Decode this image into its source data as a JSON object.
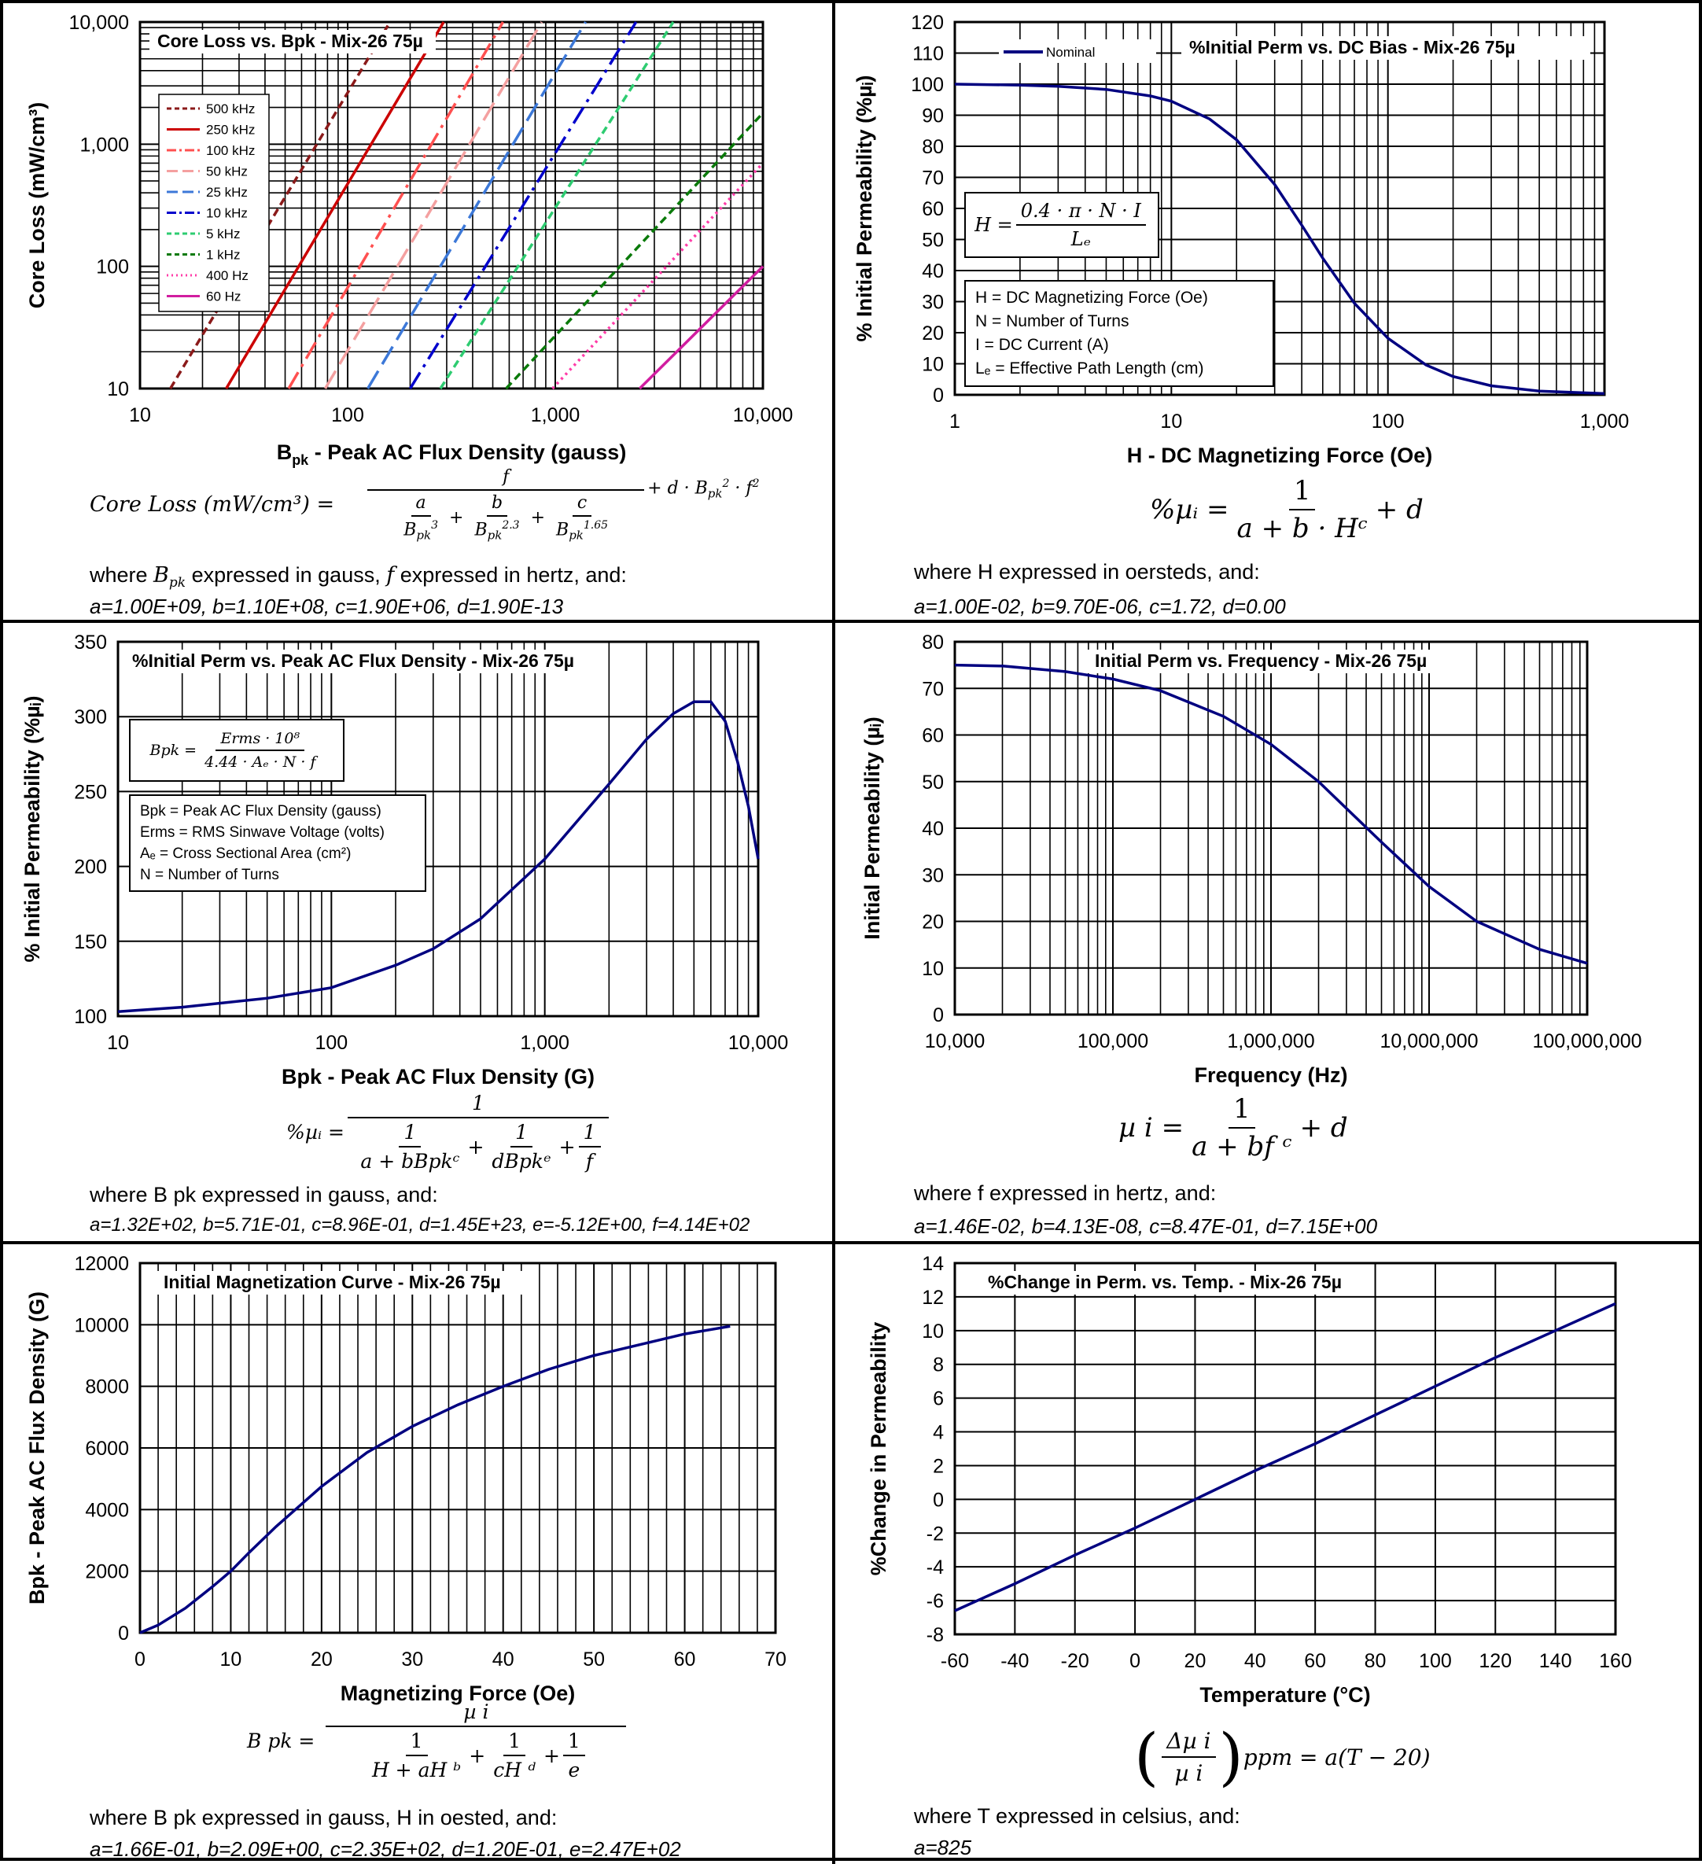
{
  "panels": {
    "core_loss": {
      "title": "Core Loss vs. Bpk - Mix-26  75µ",
      "ylabel": "Core Loss (mW/cm³)",
      "xlabel_main": "B",
      "xlabel_sub": "pk",
      "xlabel_rest": " - Peak AC Flux Density (gauss)",
      "yticks": [
        "10",
        "100",
        "1,000",
        "10,000"
      ],
      "xticks": [
        "10",
        "100",
        "1,000",
        "10,000"
      ],
      "eq_lhs": "Core Loss (mW/cm³)  =",
      "eq_f": "f",
      "eq_a": "a",
      "eq_b": "b",
      "eq_c": "c",
      "eq_Bpk": "B",
      "eq_pk": "pk",
      "eq_exp3": "3",
      "eq_exp23": "2.3",
      "eq_exp165": "1.65",
      "eq_tail": "+ d · B",
      "eq_tail_pk": "pk",
      "eq_tail_exp": "2",
      "eq_tail_f": "· f",
      "eq_tail_fexp": "2",
      "where_a": "where ",
      "where_B": "B",
      "where_pk": "pk",
      "where_b": " expressed in gauss, ",
      "where_f": "f",
      "where_c": " expressed in hertz, and:",
      "coeffs": "a=1.00E+09,   b=1.10E+08,   c=1.90E+06,   d=1.90E-13"
    },
    "dc_bias": {
      "title": "%Initial Perm vs. DC Bias - Mix-26  75µ",
      "legend": "Nominal",
      "ylabel": "% Initial Permeability (%µᵢ)",
      "xlabel": "H - DC Magnetizing Force (Oe)",
      "yticks": [
        "0",
        "10",
        "20",
        "30",
        "40",
        "50",
        "60",
        "70",
        "80",
        "90",
        "100",
        "110",
        "120"
      ],
      "xticks": [
        "1",
        "10",
        "100",
        "1,000"
      ],
      "box_eq_lhs": "H =",
      "box_eq_num": "0.4 · π · N · I",
      "box_eq_den": "Lₑ",
      "box_lines": [
        "H = DC Magnetizing Force (Oe)",
        "N = Number of Turns",
        "I = DC Current (A)",
        "Lₑ = Effective Path Length (cm)"
      ],
      "eq_lhs": "%µᵢ =",
      "eq_num": "1",
      "eq_den": "a + b · Hᶜ",
      "eq_tail": "+ d",
      "where": "where H  expressed in oersteds, and:",
      "coeffs": "a=1.00E-02,  b=9.70E-06,  c=1.72,  d=0.00"
    },
    "ac_flux": {
      "title": "%Initial Perm vs. Peak AC Flux Density - Mix-26  75µ",
      "ylabel": "% Initial Permeability (%µᵢ)",
      "xlabel": "Bpk - Peak AC Flux Density (G)",
      "yticks": [
        "100",
        "150",
        "200",
        "250",
        "300",
        "350"
      ],
      "xticks": [
        "10",
        "100",
        "1,000",
        "10,000"
      ],
      "box_eq_lhs": "Bpk =",
      "box_eq_num": "Erms · 10⁸",
      "box_eq_den": "4.44 · Aₑ · N · f",
      "box_lines": [
        "Bpk = Peak AC Flux Density (gauss)",
        "Erms = RMS Sinwave Voltage (volts)",
        "Aₑ = Cross Sectional Area (cm²)",
        "N = Number of Turns"
      ],
      "eq_lhs": "%µᵢ =",
      "eq_num": "1",
      "eq_t1": "1",
      "eq_d1": "a + bBpkᶜ",
      "eq_t2": "1",
      "eq_d2": "dBpkᵉ",
      "eq_t3": "1",
      "eq_d3": "f",
      "where": "where B pk  expressed in gauss, and:",
      "coeffs": "a=1.32E+02, b=5.71E-01, c=8.96E-01, d=1.45E+23, e=-5.12E+00, f=4.14E+02"
    },
    "frequency": {
      "title": "Initial Perm vs. Frequency - Mix-26  75µ",
      "ylabel": "Initial Permeability (µᵢ)",
      "xlabel": "Frequency (Hz)",
      "yticks": [
        "0",
        "10",
        "20",
        "30",
        "40",
        "50",
        "60",
        "70",
        "80"
      ],
      "xticks": [
        "10,000",
        "100,000",
        "1,000,000",
        "10,000,000",
        "100,000,000"
      ],
      "eq_lhs": "µ i  =",
      "eq_num": "1",
      "eq_den": "a  +  bf ᶜ",
      "eq_tail": "+  d",
      "where": "where f  expressed in hertz, and:",
      "coeffs": "a=1.46E-02,   b=4.13E-08,   c=8.47E-01,   d=7.15E+00"
    },
    "magnetization": {
      "title": "Initial Magnetization Curve - Mix-26  75µ",
      "ylabel": "Bpk - Peak AC Flux Density (G)",
      "xlabel": "Magnetizing Force (Oe)",
      "yticks": [
        "0",
        "2000",
        "4000",
        "6000",
        "8000",
        "10000",
        "12000"
      ],
      "xticks": [
        "0",
        "10",
        "20",
        "30",
        "40",
        "50",
        "60",
        "70"
      ],
      "eq_lhs": "B pk   =",
      "eq_num": "µ i",
      "eq_t1": "1",
      "eq_d1": "H  +  aH ᵇ",
      "eq_t2": "1",
      "eq_d2": "cH ᵈ",
      "eq_t3": "1",
      "eq_d3": "e",
      "where": "where B pk  expressed in gauss, H  in oested, and:",
      "coeffs": "a=1.66E-01,  b=2.09E+00,  c=2.35E+02,  d=1.20E-01,  e=2.47E+02"
    },
    "temperature": {
      "title": "%Change in Perm. vs. Temp. - Mix-26  75µ",
      "ylabel": "%Change in Permeability",
      "xlabel": "Temperature (°C)",
      "yticks": [
        "-8",
        "-6",
        "-4",
        "-2",
        "0",
        "2",
        "4",
        "6",
        "8",
        "10",
        "12",
        "14"
      ],
      "xticks": [
        "-60",
        "-40",
        "-20",
        "0",
        "20",
        "40",
        "60",
        "80",
        "100",
        "120",
        "140",
        "160"
      ],
      "eq_num": "Δµ i",
      "eq_den": "µ i",
      "eq_tail": "ppm = a(T − 20)",
      "where": "where T  expressed in celsius, and:",
      "coeffs": "a=825"
    }
  },
  "chart_data": [
    {
      "type": "line",
      "title": "Core Loss vs. Bpk - Mix-26  75µ",
      "xlabel": "Bpk - Peak AC Flux Density (gauss)",
      "ylabel": "Core Loss (mW/cm³)",
      "xscale": "log",
      "yscale": "log",
      "xlim": [
        10,
        10000
      ],
      "ylim": [
        10,
        10000
      ],
      "grid": true,
      "legend_position": "left",
      "series": [
        {
          "name": "500 kHz",
          "color": "#8b1a1a",
          "dash": "dash",
          "points": [
            [
              14,
              10
            ],
            [
              160,
              10000
            ]
          ]
        },
        {
          "name": "250 kHz",
          "color": "#cc0000",
          "dash": "solid",
          "points": [
            [
              26,
              10
            ],
            [
              290,
              10000
            ]
          ]
        },
        {
          "name": "100 kHz",
          "color": "#ff5050",
          "dash": "dashdot",
          "points": [
            [
              52,
              10
            ],
            [
              560,
              10000
            ]
          ]
        },
        {
          "name": "50 kHz",
          "color": "#f4a0a0",
          "dash": "longdash",
          "points": [
            [
              78,
              10
            ],
            [
              860,
              10000
            ]
          ]
        },
        {
          "name": "25 kHz",
          "color": "#3c78d8",
          "dash": "longdash",
          "points": [
            [
              125,
              10
            ],
            [
              1400,
              10000
            ]
          ]
        },
        {
          "name": "10 kHz",
          "color": "#0000cc",
          "dash": "dashdot",
          "points": [
            [
              200,
              10
            ],
            [
              2450,
              10000
            ]
          ]
        },
        {
          "name": "5 kHz",
          "color": "#2ecc71",
          "dash": "dash",
          "points": [
            [
              280,
              10
            ],
            [
              3700,
              10000
            ]
          ]
        },
        {
          "name": "1 kHz",
          "color": "#0a7a0a",
          "dash": "dash",
          "points": [
            [
              580,
              10
            ],
            [
              10000,
              1800
            ]
          ]
        },
        {
          "name": "400 Hz",
          "color": "#ff3ca8",
          "dash": "dot",
          "points": [
            [
              970,
              10
            ],
            [
              10000,
              700
            ]
          ]
        },
        {
          "name": "60 Hz",
          "color": "#d11da0",
          "dash": "solid",
          "points": [
            [
              2550,
              10
            ],
            [
              10000,
              100
            ]
          ]
        }
      ]
    },
    {
      "type": "line",
      "title": "%Initial Perm vs. DC Bias - Mix-26  75µ",
      "xlabel": "H - DC Magnetizing Force (Oe)",
      "ylabel": "% Initial Permeability (%µᵢ)",
      "xscale": "log",
      "xlim": [
        1,
        1000
      ],
      "ylim": [
        0,
        120
      ],
      "grid": true,
      "legend_position": "top-left",
      "series": [
        {
          "name": "Nominal",
          "color": "#000080",
          "x": [
            1,
            2,
            3,
            5,
            8,
            10,
            15,
            20,
            30,
            40,
            50,
            70,
            100,
            150,
            200,
            300,
            500,
            1000
          ],
          "y": [
            100,
            99.7,
            99.3,
            98.3,
            96.2,
            94.5,
            88.8,
            82.1,
            67.7,
            54.6,
            44.0,
            29.5,
            18.2,
            9.6,
            5.9,
            2.9,
            1.2,
            0.4
          ]
        }
      ]
    },
    {
      "type": "line",
      "title": "%Initial Perm vs. Peak AC Flux Density - Mix-26  75µ",
      "xlabel": "Bpk - Peak AC Flux Density (G)",
      "ylabel": "% Initial Permeability (%µᵢ)",
      "xscale": "log",
      "xlim": [
        10,
        10000
      ],
      "ylim": [
        100,
        350
      ],
      "grid": true,
      "series": [
        {
          "color": "#000080",
          "x": [
            10,
            20,
            50,
            100,
            200,
            300,
            500,
            1000,
            2000,
            3000,
            4000,
            5000,
            6000,
            7000,
            8000,
            9000,
            10000
          ],
          "y": [
            103,
            106,
            112,
            119,
            134,
            145,
            165,
            205,
            255,
            285,
            302,
            310,
            310,
            297,
            270,
            240,
            205
          ]
        }
      ]
    },
    {
      "type": "line",
      "title": "Initial Perm vs. Frequency - Mix-26  75µ",
      "xlabel": "Frequency (Hz)",
      "ylabel": "Initial Permeability (µᵢ)",
      "xscale": "log",
      "xlim": [
        10000,
        100000000
      ],
      "ylim": [
        0,
        80
      ],
      "grid": true,
      "series": [
        {
          "color": "#000080",
          "x": [
            10000,
            20000,
            50000,
            100000,
            200000,
            500000,
            1000000,
            2000000,
            5000000,
            10000000,
            20000000,
            50000000,
            100000000
          ],
          "y": [
            75,
            74.8,
            73.6,
            72,
            69.5,
            64,
            58,
            50,
            37,
            27.5,
            20,
            14,
            11
          ]
        }
      ]
    },
    {
      "type": "line",
      "title": "Initial Magnetization Curve - Mix-26  75µ",
      "xlabel": "Magnetizing Force (Oe)",
      "ylabel": "Bpk - Peak AC Flux Density (G)",
      "xlim": [
        0,
        70
      ],
      "ylim": [
        0,
        12000
      ],
      "grid": true,
      "series": [
        {
          "color": "#000080",
          "x": [
            0,
            2,
            5,
            8,
            10,
            12,
            15,
            20,
            25,
            30,
            35,
            40,
            45,
            50,
            55,
            60,
            65
          ],
          "y": [
            0,
            250,
            800,
            1500,
            2000,
            2600,
            3450,
            4750,
            5850,
            6700,
            7400,
            8000,
            8550,
            9000,
            9350,
            9700,
            9950
          ]
        }
      ]
    },
    {
      "type": "line",
      "title": "%Change in Perm. vs. Temp. - Mix-26  75µ",
      "xlabel": "Temperature (°C)",
      "ylabel": "%Change in Permeability",
      "xlim": [
        -60,
        160
      ],
      "ylim": [
        -8,
        14
      ],
      "grid": true,
      "series": [
        {
          "color": "#000080",
          "x": [
            -60,
            -40,
            -20,
            0,
            20,
            40,
            60,
            80,
            100,
            120,
            140,
            160
          ],
          "y": [
            -6.6,
            -5.0,
            -3.3,
            -1.7,
            0.0,
            1.7,
            3.3,
            5.0,
            6.7,
            8.4,
            10.0,
            11.6
          ]
        }
      ]
    }
  ]
}
